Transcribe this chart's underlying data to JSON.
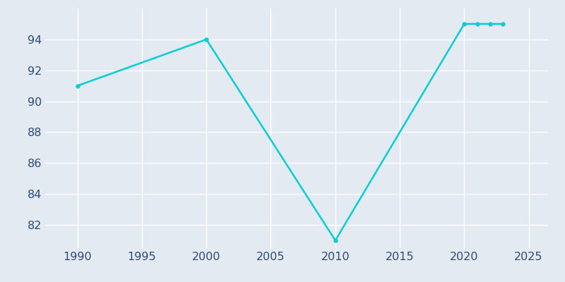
{
  "years": [
    1990,
    2000,
    2010,
    2020,
    2021,
    2022,
    2023
  ],
  "population": [
    91,
    94,
    81,
    95,
    95,
    95,
    95
  ],
  "line_color": "#00CED1",
  "marker": "o",
  "marker_size": 3.5,
  "line_width": 1.8,
  "bg_color": "#E3EAF2",
  "grid_color": "#ffffff",
  "xlim": [
    1987.5,
    2026.5
  ],
  "ylim": [
    80.5,
    96.0
  ],
  "xticks": [
    1990,
    1995,
    2000,
    2005,
    2010,
    2015,
    2020,
    2025
  ],
  "yticks": [
    82,
    84,
    86,
    88,
    90,
    92,
    94
  ],
  "tick_color": "#2D4A7A",
  "tick_fontsize": 11.5
}
